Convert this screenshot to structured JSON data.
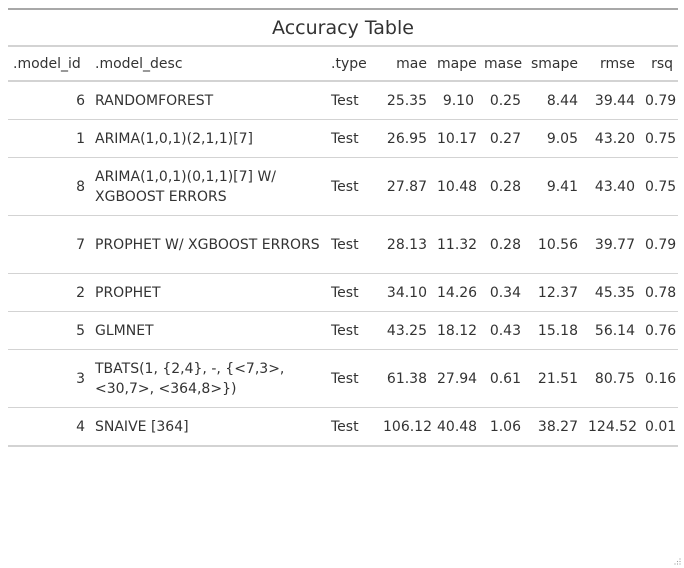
{
  "table": {
    "title": "Accuracy Table",
    "columns": [
      ".model_id",
      ".model_desc",
      ".type",
      "mae",
      "mape",
      "mase",
      "smape",
      "rmse",
      "rsq"
    ],
    "rows": [
      {
        "model_id": "6",
        "model_desc": "RANDOMFOREST",
        "type": "Test",
        "mae": "25.35",
        "mape": "9.10",
        "mase": "0.25",
        "smape": "8.44",
        "rmse": "39.44",
        "rsq": "0.79"
      },
      {
        "model_id": "1",
        "model_desc": "ARIMA(1,0,1)(2,1,1)[7]",
        "type": "Test",
        "mae": "26.95",
        "mape": "10.17",
        "mase": "0.27",
        "smape": "9.05",
        "rmse": "43.20",
        "rsq": "0.75"
      },
      {
        "model_id": "8",
        "model_desc": "ARIMA(1,0,1)(0,1,1)[7] W/ XGBOOST ERRORS",
        "type": "Test",
        "mae": "27.87",
        "mape": "10.48",
        "mase": "0.28",
        "smape": "9.41",
        "rmse": "43.40",
        "rsq": "0.75"
      },
      {
        "model_id": "7",
        "model_desc": "PROPHET W/ XGBOOST ERRORS",
        "type": "Test",
        "mae": "28.13",
        "mape": "11.32",
        "mase": "0.28",
        "smape": "10.56",
        "rmse": "39.77",
        "rsq": "0.79"
      },
      {
        "model_id": "2",
        "model_desc": "PROPHET",
        "type": "Test",
        "mae": "34.10",
        "mape": "14.26",
        "mase": "0.34",
        "smape": "12.37",
        "rmse": "45.35",
        "rsq": "0.78"
      },
      {
        "model_id": "5",
        "model_desc": "GLMNET",
        "type": "Test",
        "mae": "43.25",
        "mape": "18.12",
        "mase": "0.43",
        "smape": "15.18",
        "rmse": "56.14",
        "rsq": "0.76"
      },
      {
        "model_id": "3",
        "model_desc": "TBATS(1, {2,4}, -, {<7,3>, <30,7>, <364,8>})",
        "type": "Test",
        "mae": "61.38",
        "mape": "27.94",
        "mase": "0.61",
        "smape": "21.51",
        "rmse": "80.75",
        "rsq": "0.16"
      },
      {
        "model_id": "4",
        "model_desc": "SNAIVE [364]",
        "type": "Test",
        "mae": "106.12",
        "mape": "40.48",
        "mase": "1.06",
        "smape": "38.27",
        "rmse": "124.52",
        "rsq": "0.01"
      }
    ]
  },
  "icons": {
    "resize_grip": "resize-grip-icon"
  }
}
